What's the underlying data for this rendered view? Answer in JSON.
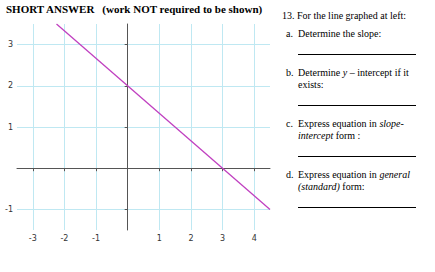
{
  "header": {
    "title": "SHORT ANSWER",
    "note": "(work NOT required to be shown)"
  },
  "chart_data": {
    "type": "line",
    "x": [
      -2.25,
      4.5
    ],
    "values": [
      3.5,
      -1
    ],
    "color": "#c040c0",
    "xlim": [
      -3.5,
      4.5
    ],
    "ylim": [
      -1.5,
      3.5
    ],
    "xticks": [
      -3,
      -2,
      -1,
      1,
      2,
      3,
      4
    ],
    "yticks": [
      -1,
      1,
      2,
      3
    ],
    "grid": true
  },
  "question": {
    "number": "13.",
    "prompt": "For the line graphed at left:",
    "items": [
      {
        "letter": "a.",
        "text": "Determine the slope:"
      },
      {
        "letter": "b.",
        "text": "Determine y – intercept if it exists:",
        "italic": "y"
      },
      {
        "letter": "c.",
        "text": "Express equation in slope-intercept form :",
        "italic": "slope-intercept"
      },
      {
        "letter": "d.",
        "text": "Express equation in general (standard) form:",
        "italic": "general (standard)"
      }
    ]
  }
}
